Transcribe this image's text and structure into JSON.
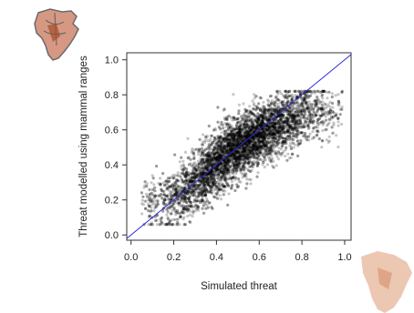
{
  "chart_data": {
    "type": "scatter",
    "title": "",
    "xlabel": "Simulated threat",
    "ylabel": "Threat modelled using mammal ranges",
    "xlim": [
      -0.02,
      1.03
    ],
    "ylim": [
      -0.03,
      1.04
    ],
    "xticks": [
      0.0,
      0.2,
      0.4,
      0.6,
      0.8,
      1.0
    ],
    "yticks": [
      0.0,
      0.2,
      0.4,
      0.6,
      0.8,
      1.0
    ],
    "xtick_labels": [
      "0.0",
      "0.2",
      "0.4",
      "0.6",
      "0.8",
      "1.0"
    ],
    "ytick_labels": [
      "0.0",
      "0.2",
      "0.4",
      "0.6",
      "0.8",
      "1.0"
    ],
    "grid": false,
    "reference_line": {
      "from": [
        0,
        0
      ],
      "to": [
        1,
        1
      ],
      "color": "#2b2bd6"
    },
    "point_color": "#000000",
    "point_count_approx": 6000,
    "trend": {
      "points": [
        {
          "x": 0.1,
          "y": 0.18
        },
        {
          "x": 0.2,
          "y": 0.2
        },
        {
          "x": 0.3,
          "y": 0.3
        },
        {
          "x": 0.4,
          "y": 0.4
        },
        {
          "x": 0.5,
          "y": 0.5
        },
        {
          "x": 0.6,
          "y": 0.57
        },
        {
          "x": 0.7,
          "y": 0.63
        },
        {
          "x": 0.8,
          "y": 0.68
        },
        {
          "x": 0.9,
          "y": 0.71
        },
        {
          "x": 0.97,
          "y": 0.72
        }
      ],
      "spread_y": 0.085,
      "x_range": [
        0.05,
        0.99
      ]
    }
  },
  "inset_maps": {
    "top_left": {
      "icon": "africa-map-icon",
      "color": "#c8765a",
      "outline": "#6a6a6a"
    },
    "bottom_right": {
      "icon": "africa-map-icon",
      "color": "#e0a27e"
    }
  }
}
